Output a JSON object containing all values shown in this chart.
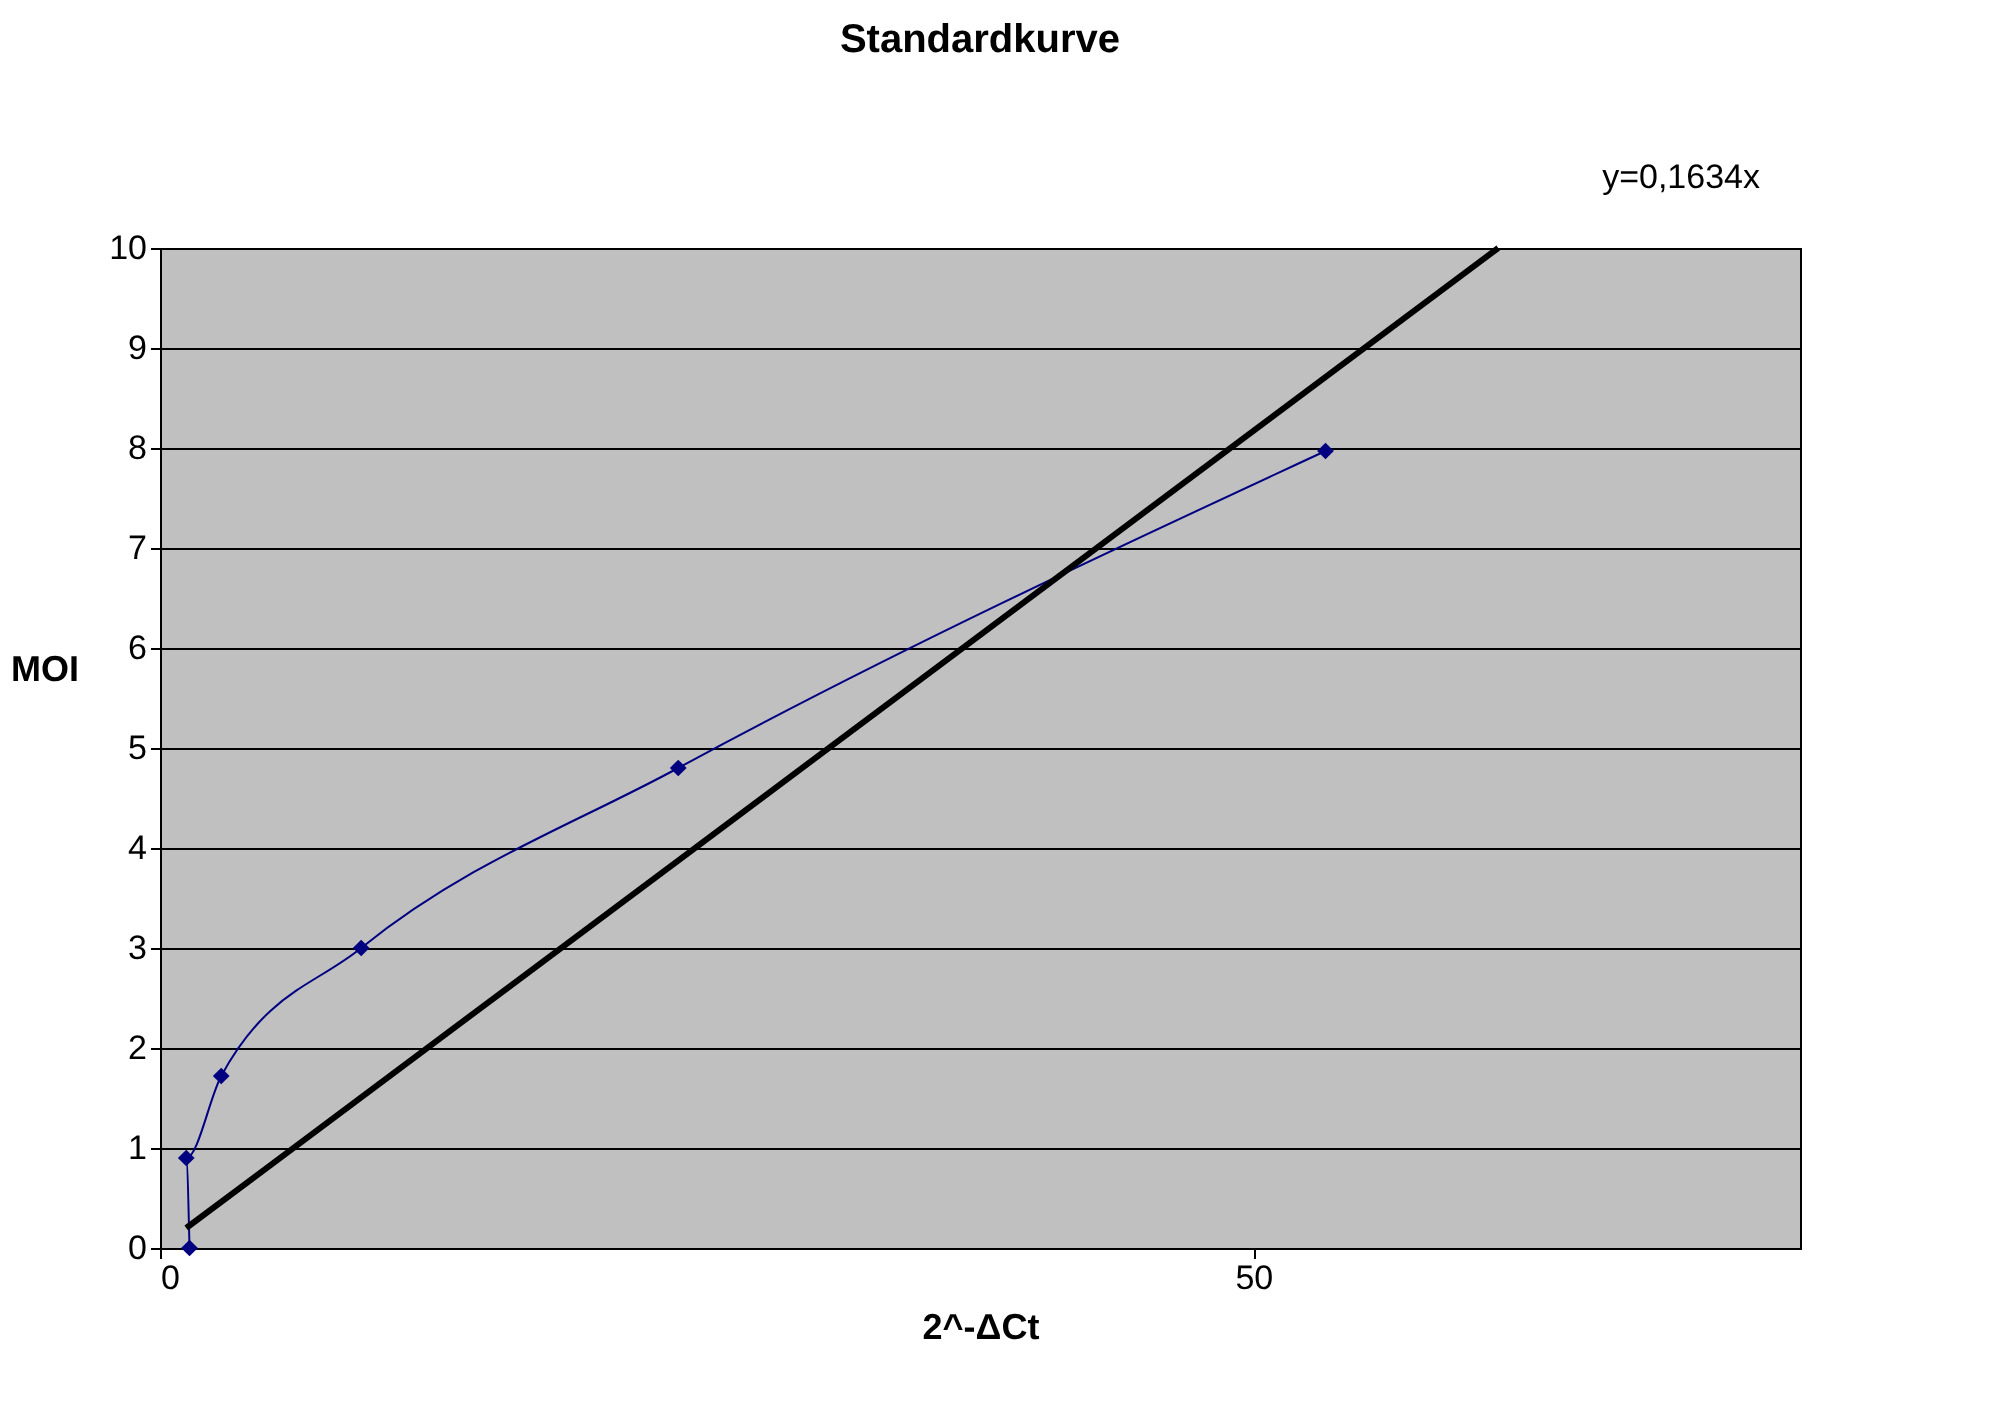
{
  "chart_data": {
    "type": "line",
    "title": "Standardkurve",
    "xlabel": "2^-ΔCt",
    "ylabel": "MOI",
    "annotations": [
      "y=0,1634x"
    ],
    "series": [
      {
        "x": [
          1.35,
          1.2,
          2.8,
          9.2,
          23.7,
          53.3
        ],
        "values": [
          0,
          0.9,
          1.72,
          3.0,
          4.8,
          7.97
        ],
        "color": "#000080",
        "marker": "diamond"
      },
      {
        "x": [
          1.2,
          61.2
        ],
        "values": [
          0.2,
          10
        ],
        "color": "#000000",
        "marker": "none"
      }
    ],
    "xlim": [
      0,
      75
    ],
    "xticks": [
      0,
      50
    ],
    "ylim": [
      0,
      10
    ],
    "yticks": [
      0,
      1,
      2,
      3,
      4,
      5,
      6,
      7,
      8,
      9,
      10
    ],
    "grid": "y"
  }
}
